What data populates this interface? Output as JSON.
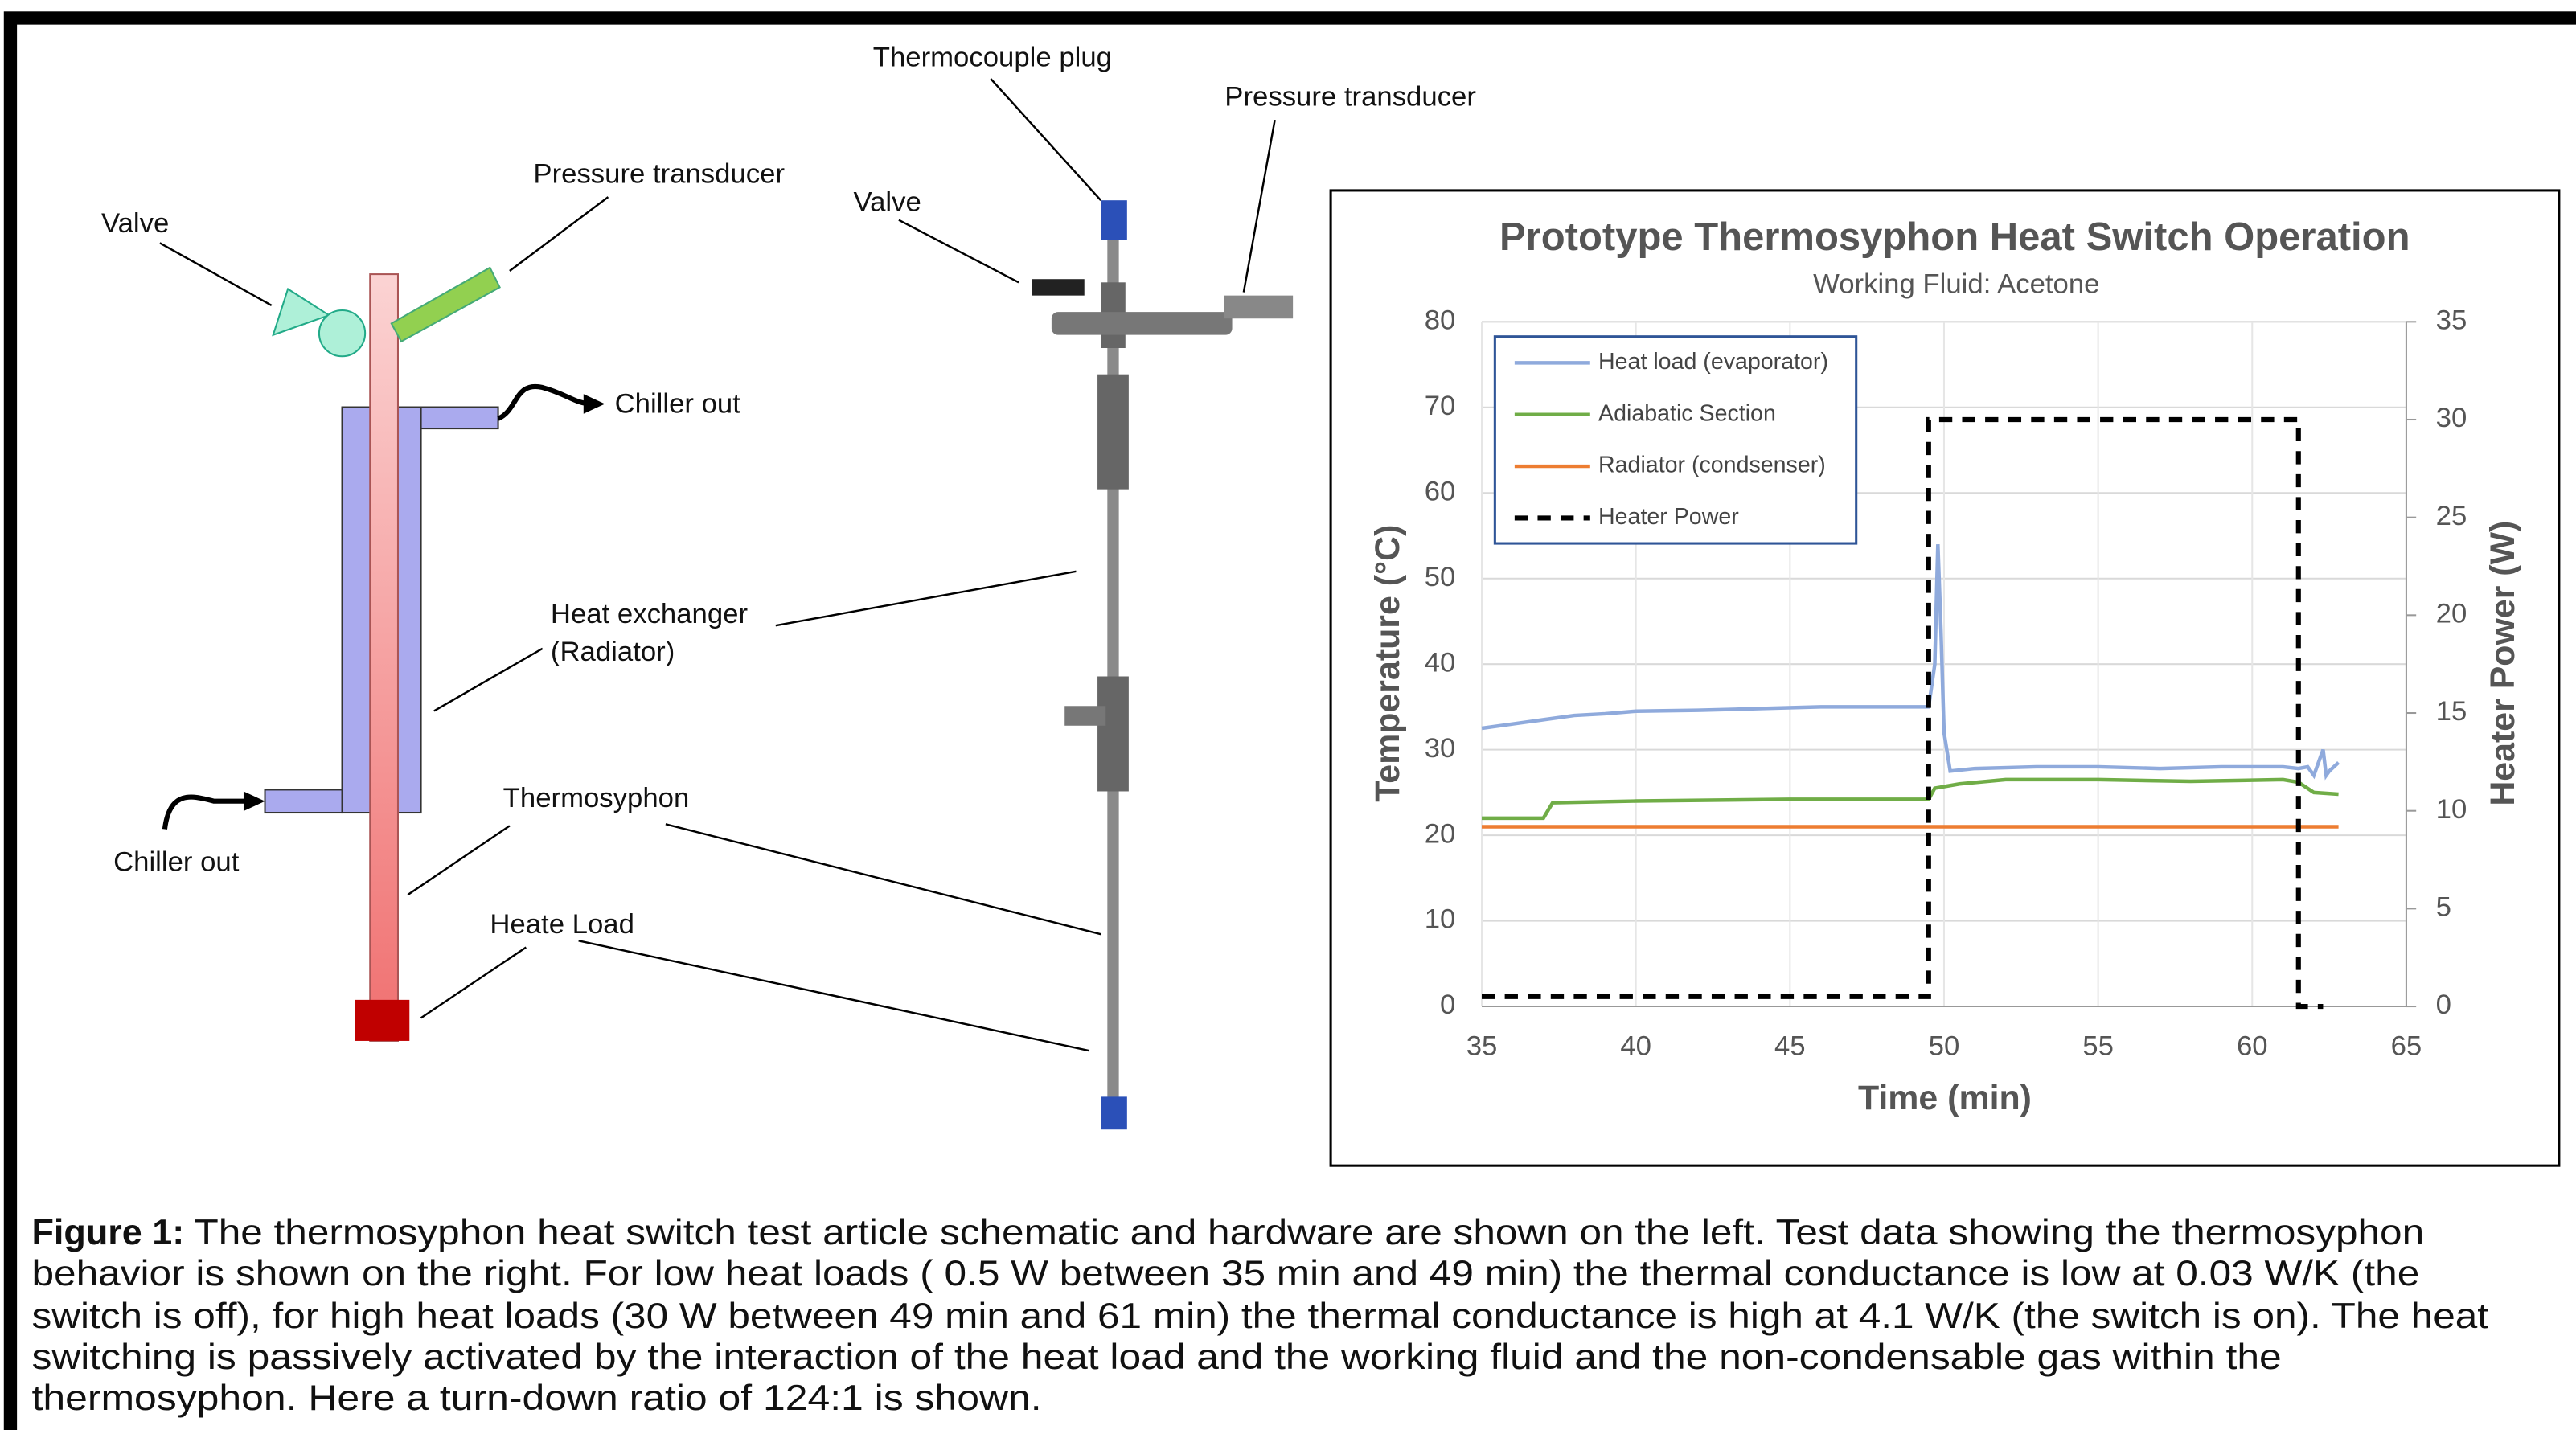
{
  "schematic": {
    "valve": "Valve",
    "pressure_transducer": "Pressure transducer",
    "chiller_out_top": "Chiller out",
    "chiller_out_bottom": "Chiller out",
    "heat_exchanger": [
      "Heat exchanger",
      "(Radiator)"
    ],
    "thermosyphon": "Thermosyphon",
    "heat_load": "Heate Load"
  },
  "hardware": {
    "thermocouple_plug": "Thermocouple plug",
    "pressure_transducer": "Pressure transducer",
    "valve": "Valve"
  },
  "chart_data": {
    "type": "line",
    "title": "Prototype Thermosyphon Heat Switch Operation",
    "subtitle": "Working Fluid: Acetone",
    "x_label": "Time (min)",
    "y_label": "Temperature (°C)",
    "y2_label": "Heater Power (W)",
    "xlim": [
      35,
      65
    ],
    "xticks": [
      35,
      40,
      45,
      50,
      55,
      60,
      65
    ],
    "ylim": [
      0,
      80
    ],
    "yticks": [
      0,
      10,
      20,
      30,
      40,
      50,
      60,
      70,
      80
    ],
    "y2lim": [
      0,
      35
    ],
    "y2ticks": [
      0,
      5,
      10,
      15,
      20,
      25,
      30,
      35
    ],
    "grid": true,
    "legend": "upper left",
    "series": [
      {
        "name": "Heat load (evaporator)",
        "color": "#8faadc",
        "x": [
          35,
          36,
          37,
          38,
          39,
          40,
          42,
          44,
          46,
          48,
          49.5,
          49.7,
          49.8,
          49.9,
          50,
          50.2,
          51,
          53,
          55,
          57,
          59,
          61,
          61.5,
          61.8,
          62,
          62.2,
          62.3,
          62.4,
          62.5,
          62.8
        ],
        "values": [
          32.5,
          33,
          33.5,
          34,
          34.2,
          34.5,
          34.6,
          34.8,
          35,
          35,
          35,
          40,
          54,
          44,
          32,
          27.5,
          27.8,
          28,
          28,
          27.8,
          28,
          28,
          27.8,
          28,
          27,
          29,
          30,
          27,
          27.5,
          28.5
        ]
      },
      {
        "name": "Adiabatic Section",
        "color": "#70ad47",
        "x": [
          35,
          37,
          37.3,
          40,
          45,
          49.5,
          49.7,
          50.5,
          52,
          55,
          58,
          61,
          61.5,
          62,
          62.8
        ],
        "values": [
          22,
          22,
          23.8,
          24,
          24.2,
          24.2,
          25.5,
          26,
          26.5,
          26.5,
          26.3,
          26.5,
          26.2,
          25,
          24.8
        ]
      },
      {
        "name": "Radiator (condsenser)",
        "color": "#ed7d31",
        "x": [
          35,
          62.8
        ],
        "values": [
          21,
          21
        ]
      },
      {
        "name": "Heater Power",
        "color": "#000000",
        "axis": "y2",
        "dashed": true,
        "x": [
          35,
          49.5,
          49.5,
          61.5,
          61.5,
          62.3
        ],
        "values": [
          0.5,
          0.5,
          30,
          30,
          0,
          0
        ]
      }
    ]
  },
  "caption": {
    "label": "Figure 1:",
    "lines": [
      "The thermosyphon heat switch test article schematic and hardware are shown on the left. Test data showing the thermosyphon",
      "behavior is shown on the right. For low heat loads ( 0.5 W between 35 min and 49 min) the thermal conductance is low at 0.03 W/K (the",
      "switch is off), for high heat loads (30 W between 49 min and 61 min) the thermal conductance is high at 4.1 W/K (the switch is on). The heat",
      "switching is passively activated by the interaction of the heat load and the working fluid and the non-condensable gas within the",
      "thermosyphon. Here a turn-down ratio of 124:1 is shown."
    ]
  }
}
